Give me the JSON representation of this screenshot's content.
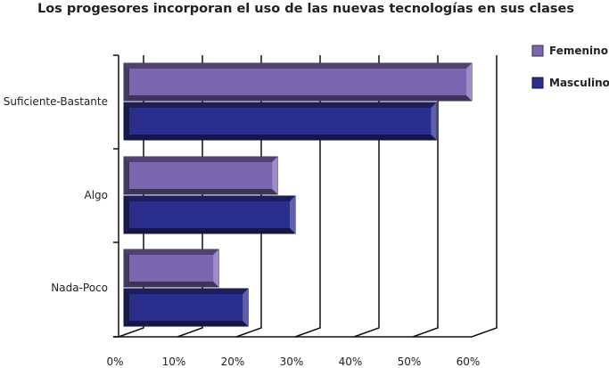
{
  "chart_data": {
    "type": "bar",
    "orientation": "horizontal",
    "style": "3d",
    "title": "Los progesores incorporan el uso de las nuevas tecnologías en sus clases",
    "categories": [
      "Suficiente-Bastante",
      "Algo",
      "Nada-Poco"
    ],
    "series": [
      {
        "name": "Femenino",
        "values": [
          60,
          27,
          17
        ],
        "color": "#7b67b0"
      },
      {
        "name": "Masculino",
        "values": [
          54,
          30,
          22
        ],
        "color": "#2a2e8c"
      }
    ],
    "x_ticks": [
      "0%",
      "10%",
      "20%",
      "30%",
      "40%",
      "50%",
      "60%"
    ],
    "xlim": [
      0,
      60
    ],
    "xlabel": "",
    "ylabel": "",
    "grid": true,
    "legend_position": "top-right"
  }
}
